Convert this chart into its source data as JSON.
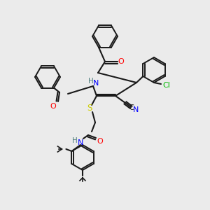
{
  "bg_color": "#ebebeb",
  "bond_color": "#1a1a1a",
  "colors": {
    "O": "#ff0000",
    "N": "#0000ff",
    "S": "#cccc00",
    "Cl": "#00bb00",
    "C": "#1a1a1a",
    "H": "#4a7a7a",
    "CN": "#1a1a1a"
  },
  "lw": 1.5,
  "ring_lw": 1.4
}
